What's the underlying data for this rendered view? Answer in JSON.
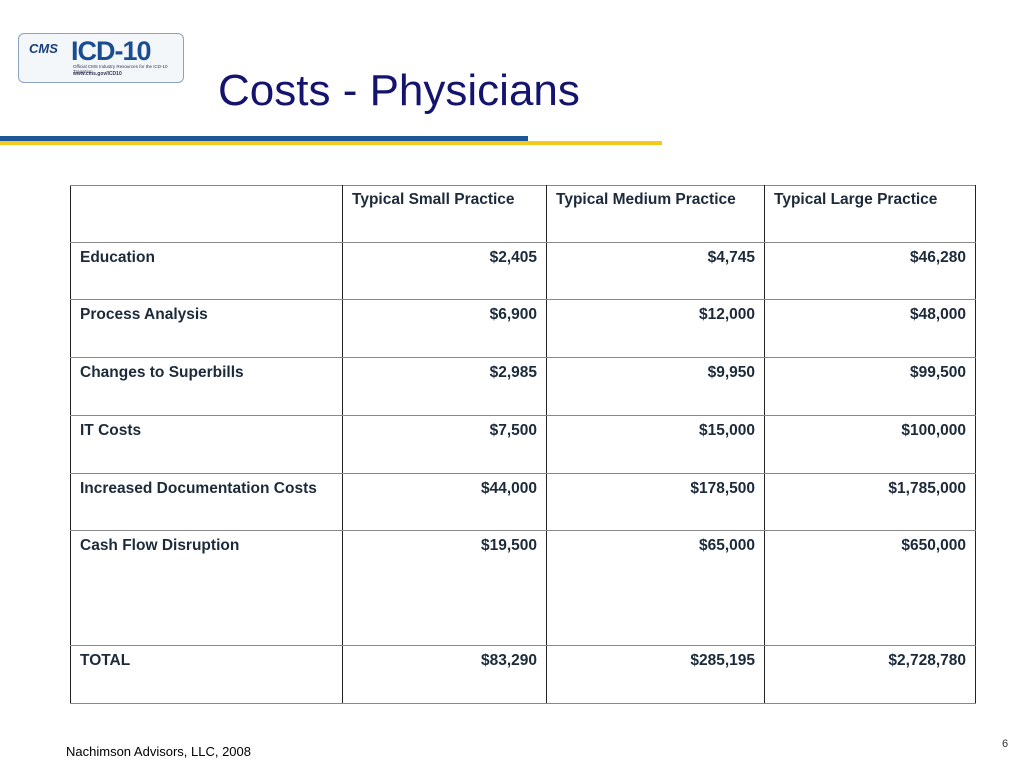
{
  "logo": {
    "agency": "CMS",
    "name": "ICD-10",
    "tagline": "Official CMS Industry Resources for the ICD-10 Transition",
    "url": "www.cms.gov/ICD10"
  },
  "title": "Costs - Physicians",
  "table": {
    "header": [
      "",
      "Typical Small Practice",
      "Typical Medium Practice",
      "Typical Large Practice"
    ],
    "rows": [
      [
        "Education",
        "$2,405",
        "$4,745",
        "$46,280"
      ],
      [
        "Process Analysis",
        "$6,900",
        "$12,000",
        "$48,000"
      ],
      [
        "Changes to Superbills",
        "$2,985",
        "$9,950",
        "$99,500"
      ],
      [
        "IT Costs",
        "$7,500",
        "$15,000",
        "$100,000"
      ],
      [
        "Increased Documentation Costs",
        "$44,000",
        "$178,500",
        "$1,785,000"
      ],
      [
        "Cash Flow Disruption",
        "$19,500",
        "$65,000",
        "$650,000"
      ],
      [
        "TOTAL",
        "$83,290",
        "$285,195",
        "$2,728,780"
      ]
    ]
  },
  "footer": {
    "source": "Nachimson Advisors, LLC, 2008",
    "page": "6"
  }
}
